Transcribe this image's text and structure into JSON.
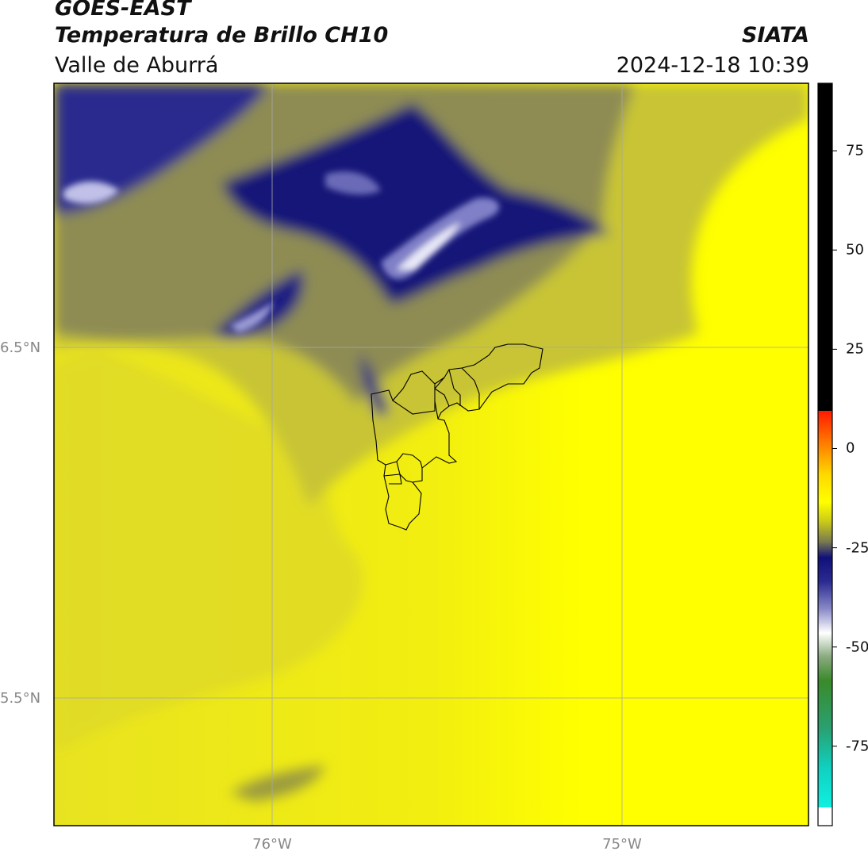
{
  "header": {
    "source": "GOES-EAST",
    "product": "Temperatura de Brillo CH10",
    "organization": "SIATA",
    "region": "Valle de Aburrá",
    "timestamp": "2024-12-18 10:39"
  },
  "map": {
    "lat_labels": [
      "6.5°N",
      "5.5°N"
    ],
    "lon_labels": [
      "76°W",
      "75°W"
    ],
    "gridlines": true
  },
  "colorbar": {
    "ticks": [
      "75",
      "50",
      "25",
      "0",
      "-25",
      "-50",
      "-75"
    ],
    "tick_values": [
      75,
      50,
      25,
      0,
      -25,
      -50,
      -75
    ],
    "range": [
      -95,
      92
    ],
    "colors": {
      "hot": "#000000",
      "warm": "#ff0000",
      "mid": "#ffff00",
      "olive": "#9a9a30",
      "navy": "#10107a",
      "white": "#ffffff",
      "green": "#3a8a2a",
      "cyan": "#10f0e0"
    }
  }
}
